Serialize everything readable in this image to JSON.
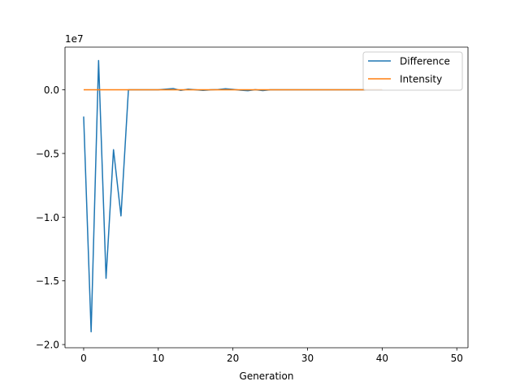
{
  "chart_data": {
    "type": "line",
    "title": "",
    "xlabel": "Generation",
    "ylabel": "",
    "offset_label": "1e7",
    "xlim": [
      -2.5,
      51.5
    ],
    "ylim": [
      -20250000,
      3350000
    ],
    "x_ticks": [
      0,
      10,
      20,
      30,
      40,
      50
    ],
    "x_tick_labels": [
      "0",
      "10",
      "20",
      "30",
      "40",
      "50"
    ],
    "y_ticks": [
      0,
      -5000000,
      -10000000,
      -15000000,
      -20000000
    ],
    "y_tick_labels": [
      "0.0",
      "−0.5",
      "−1.0",
      "−1.5",
      "−2.0"
    ],
    "grid": false,
    "legend_position": "upper-right",
    "series": [
      {
        "name": "Difference",
        "color": "#1f77b4",
        "x": [
          0,
          1,
          2,
          3,
          4,
          5,
          6,
          7,
          8,
          9,
          10,
          11,
          12,
          13,
          14,
          15,
          16,
          17,
          18,
          19,
          20,
          21,
          22,
          23,
          24,
          25,
          26,
          27,
          28,
          29,
          30,
          31,
          32,
          33,
          34,
          35,
          36,
          37,
          38,
          39,
          40
        ],
        "values": [
          -2100000,
          -19000000,
          2300000,
          -14800000,
          -4700000,
          -9900000,
          0,
          0,
          0,
          0,
          0,
          50000,
          100000,
          -50000,
          50000,
          0,
          -50000,
          0,
          20000,
          80000,
          30000,
          -30000,
          -70000,
          10000,
          -60000,
          0,
          0,
          0,
          0,
          0,
          0,
          0,
          0,
          0,
          0,
          0,
          0,
          0,
          0,
          0,
          0
        ]
      },
      {
        "name": "Intensity",
        "color": "#ff7f0e",
        "x": [
          0,
          1,
          2,
          3,
          4,
          5,
          6,
          7,
          8,
          9,
          10,
          11,
          12,
          13,
          14,
          15,
          16,
          17,
          18,
          19,
          20,
          21,
          22,
          23,
          24,
          25,
          26,
          27,
          28,
          29,
          30,
          31,
          32,
          33,
          34,
          35,
          36,
          37,
          38,
          39,
          40
        ],
        "values": [
          0,
          0,
          0,
          0,
          0,
          0,
          0,
          0,
          0,
          0,
          0,
          0,
          0,
          0,
          0,
          0,
          0,
          0,
          0,
          0,
          0,
          0,
          0,
          0,
          0,
          0,
          0,
          0,
          0,
          0,
          0,
          0,
          0,
          0,
          0,
          0,
          0,
          0,
          0,
          0,
          0
        ]
      }
    ]
  }
}
